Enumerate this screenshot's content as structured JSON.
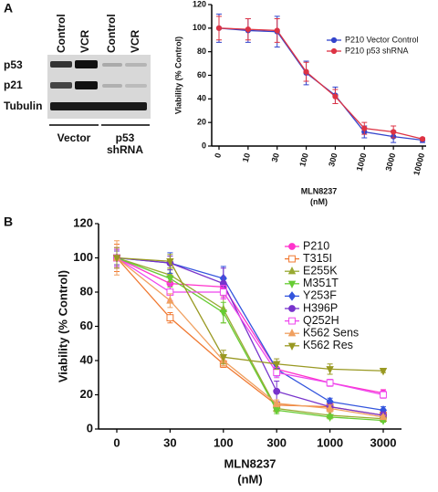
{
  "panels": {
    "a": "A",
    "b": "B"
  },
  "blot": {
    "columns": [
      "Control",
      "VCR",
      "Control",
      "VCR"
    ],
    "rows": [
      "p53",
      "p21",
      "Tubulin"
    ],
    "groups": [
      [
        "Vector"
      ],
      [
        "p53",
        "shRNA"
      ]
    ]
  },
  "chart_data": [
    {
      "type": "line",
      "ylabel": "Viability (% Control)",
      "xlabel": [
        "MLN8237",
        "(nM)"
      ],
      "categories": [
        "0",
        "10",
        "30",
        "100",
        "300",
        "1000",
        "3000",
        "10000"
      ],
      "ylim": [
        0,
        120
      ],
      "yticks": [
        0,
        20,
        40,
        60,
        80,
        100,
        120
      ],
      "legend": "upper right",
      "series": [
        {
          "name": "P210 Vector Control",
          "color": "#3344cc",
          "marker": "circle",
          "values": [
            100,
            98,
            97,
            62,
            43,
            12,
            8,
            5
          ],
          "errors": [
            12,
            10,
            13,
            10,
            7,
            5,
            5,
            2
          ]
        },
        {
          "name": "P210 p53 shRNA",
          "color": "#dd3344",
          "marker": "circle",
          "values": [
            100,
            99,
            98,
            63,
            42,
            15,
            12,
            6
          ],
          "errors": [
            10,
            9,
            10,
            8,
            6,
            5,
            5,
            1
          ]
        }
      ]
    },
    {
      "type": "line",
      "ylabel": "Viability (% Control)",
      "xlabel": [
        "MLN8237",
        "(nM)"
      ],
      "categories": [
        "0",
        "30",
        "100",
        "300",
        "1000",
        "3000"
      ],
      "ylim": [
        0,
        120
      ],
      "yticks": [
        0,
        20,
        40,
        60,
        80,
        100,
        120
      ],
      "legend": "upper right",
      "series": [
        {
          "name": "P210",
          "color": "#ff33cc",
          "marker": "circle",
          "values": [
            100,
            85,
            83,
            35,
            27,
            21
          ],
          "errors": [
            6,
            5,
            6,
            3,
            2,
            2
          ]
        },
        {
          "name": "T315I",
          "color": "#f07830",
          "marker": "square",
          "values": [
            100,
            65,
            38,
            14,
            13,
            8
          ],
          "errors": [
            8,
            3,
            2,
            2,
            2,
            1
          ]
        },
        {
          "name": "E255K",
          "color": "#99aa33",
          "marker": "triangle",
          "values": [
            100,
            90,
            70,
            12,
            8,
            6
          ],
          "errors": [
            5,
            4,
            8,
            2,
            2,
            1
          ]
        },
        {
          "name": "M351T",
          "color": "#66cc33",
          "marker": "down",
          "values": [
            100,
            88,
            68,
            11,
            7,
            5
          ],
          "errors": [
            4,
            5,
            6,
            2,
            1,
            1
          ]
        },
        {
          "name": "Y253F",
          "color": "#3355dd",
          "marker": "diamond",
          "values": [
            100,
            97,
            88,
            35,
            16,
            11
          ],
          "errors": [
            5,
            6,
            7,
            4,
            2,
            2
          ]
        },
        {
          "name": "H396P",
          "color": "#7733cc",
          "marker": "circle",
          "values": [
            100,
            97,
            85,
            22,
            13,
            8
          ],
          "errors": [
            4,
            4,
            9,
            6,
            2,
            2
          ]
        },
        {
          "name": "Q252H",
          "color": "#ee44ee",
          "marker": "square",
          "values": [
            100,
            80,
            80,
            33,
            27,
            20
          ],
          "errors": [
            5,
            5,
            4,
            3,
            2,
            2
          ]
        },
        {
          "name": "K562 Sens",
          "color": "#f0a060",
          "marker": "triangle",
          "values": [
            100,
            75,
            40,
            15,
            12,
            7
          ],
          "errors": [
            10,
            4,
            3,
            2,
            2,
            1
          ]
        },
        {
          "name": "K562 Res",
          "color": "#999922",
          "marker": "down",
          "values": [
            100,
            98,
            42,
            38,
            35,
            34
          ],
          "errors": [
            6,
            4,
            4,
            3,
            3,
            1
          ]
        }
      ]
    }
  ]
}
